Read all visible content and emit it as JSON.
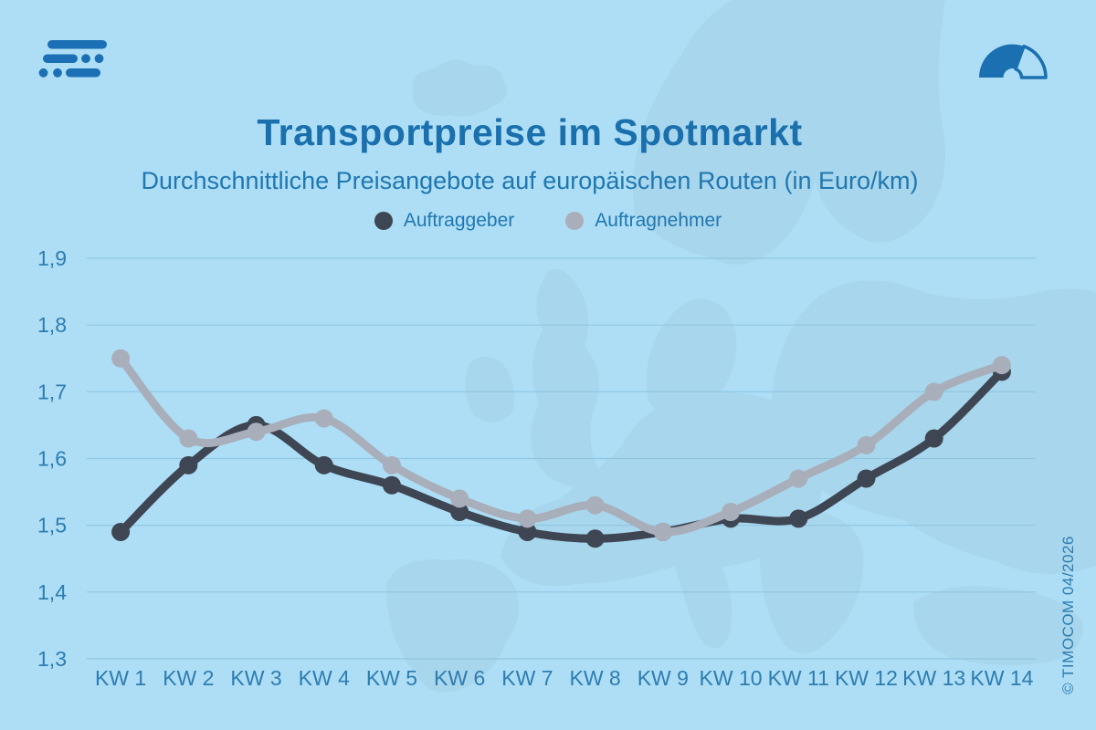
{
  "header": {
    "title": "Transportpreise im Spotmarkt",
    "subtitle": "Durchschnittliche Preisangebote auf europäischen Routen (in Euro/km)",
    "logo_icon": "timocom-logo",
    "gauge_icon": "speedometer-gauge-icon"
  },
  "legend": [
    {
      "label": "Auftraggeber",
      "color": "#3e4553"
    },
    {
      "label": "Auftragnehmer",
      "color": "#a9afba"
    }
  ],
  "chart_data": {
    "type": "line",
    "title": "Transportpreise im Spotmarkt",
    "subtitle": "Durchschnittliche Preisangebote auf europäischen Routen (in Euro/km)",
    "unit": "Euro/km",
    "categories": [
      "KW 1",
      "KW 2",
      "KW 3",
      "KW 4",
      "KW 5",
      "KW 6",
      "KW 7",
      "KW 8",
      "KW 9",
      "KW 10",
      "KW 11",
      "KW 12",
      "KW 13",
      "KW 14"
    ],
    "series": [
      {
        "name": "Auftraggeber",
        "color": "#3e4553",
        "values": [
          1.49,
          1.59,
          1.65,
          1.59,
          1.56,
          1.52,
          1.49,
          1.48,
          1.49,
          1.51,
          1.51,
          1.57,
          1.63,
          1.73
        ]
      },
      {
        "name": "Auftragnehmer",
        "color": "#a9afba",
        "values": [
          1.75,
          1.63,
          1.64,
          1.66,
          1.59,
          1.54,
          1.51,
          1.53,
          1.49,
          1.52,
          1.57,
          1.62,
          1.7,
          1.74
        ]
      }
    ],
    "ylim": [
      1.3,
      1.9
    ],
    "yticks": [
      "1,9",
      "1,8",
      "1,7",
      "1,6",
      "1,5",
      "1,4",
      "1,3"
    ],
    "grid": true,
    "legend_position": "top",
    "colors": {
      "background": "#addef6",
      "map": "#a8d6ec",
      "gridline": "#8fc6e3",
      "text": "#2e7cb0",
      "accent": "#1b6fb4"
    }
  },
  "footer": {
    "copyright": "© TIMOCOM  04/2026"
  }
}
